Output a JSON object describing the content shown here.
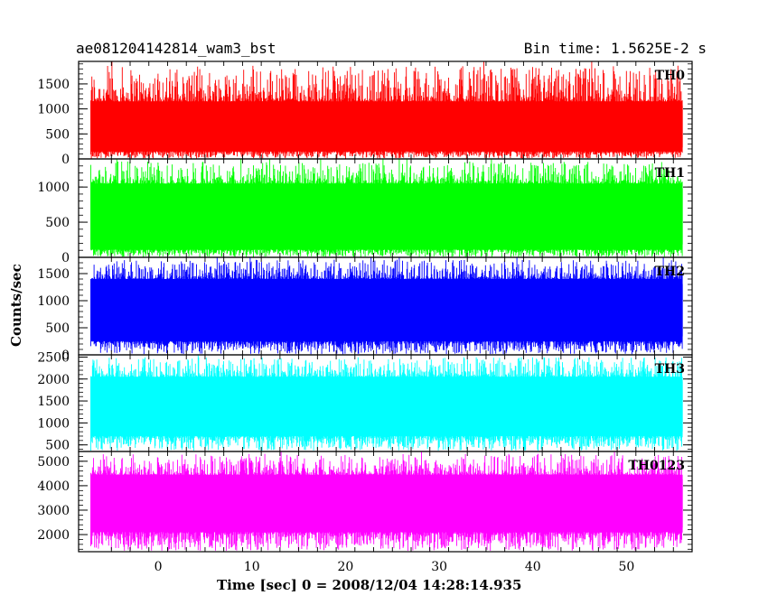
{
  "chart_data": {
    "type": "line",
    "title_left": "ae081204142814_wam3_bst",
    "title_right": "Bin time: 1.5625E-2 s",
    "xlabel": "Time [sec] 0 = 2008/12/04 14:28:14.935",
    "ylabel": "Counts/sec",
    "xlim": [
      -8.5,
      57
    ],
    "x_ticks": [
      0,
      10,
      20,
      30,
      40,
      50
    ],
    "x_range_data": [
      -7.2,
      56.0
    ],
    "bin_time": 0.015625,
    "grid": false,
    "panels": [
      {
        "name": "TH0",
        "color": "#ff0000",
        "ylim": [
          0,
          1950
        ],
        "ticks": [
          0,
          500,
          1000,
          1500
        ],
        "mean": 720,
        "low_mean": 150,
        "high_mean": 1150,
        "max": 1950
      },
      {
        "name": "TH1",
        "color": "#00ff00",
        "ylim": [
          0,
          1400
        ],
        "ticks": [
          0,
          500,
          1000
        ],
        "mean": 600,
        "low_mean": 110,
        "high_mean": 1050,
        "max": 1400
      },
      {
        "name": "TH2",
        "color": "#0000ff",
        "ylim": [
          0,
          1800
        ],
        "ticks": [
          0,
          500,
          1000,
          1500
        ],
        "mean": 820,
        "low_mean": 250,
        "high_mean": 1400,
        "max": 1800
      },
      {
        "name": "TH3",
        "color": "#00ffff",
        "ylim": [
          350,
          2550
        ],
        "ticks": [
          500,
          1000,
          1500,
          2000,
          2500
        ],
        "mean": 1350,
        "low_mean": 700,
        "high_mean": 2050,
        "max": 2550
      },
      {
        "name": "TH0123",
        "color": "#ff00ff",
        "ylim": [
          1300,
          5400
        ],
        "ticks": [
          2000,
          3000,
          4000,
          5000
        ],
        "mean": 3300,
        "low_mean": 2100,
        "high_mean": 4450,
        "max": 5400
      }
    ]
  }
}
